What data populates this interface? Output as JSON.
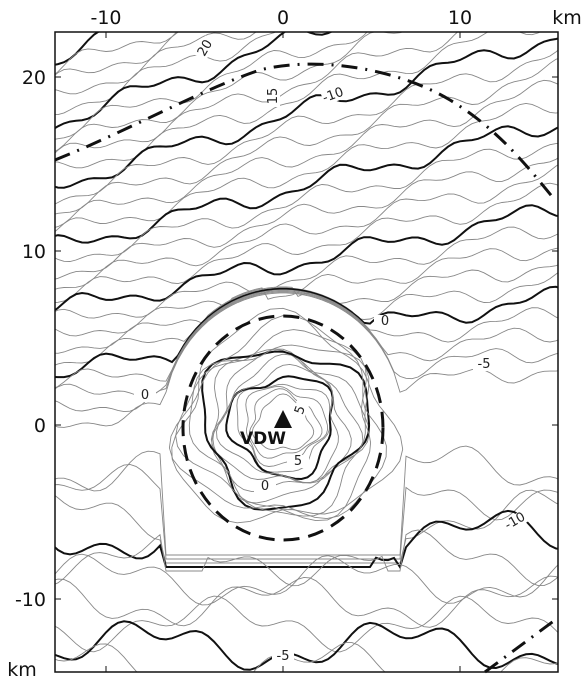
{
  "map": {
    "x_axis": {
      "unit": "km",
      "ticks": [
        -10,
        0,
        10
      ]
    },
    "y_axis": {
      "unit": "km",
      "ticks": [
        20,
        10,
        0,
        -10
      ]
    },
    "volcano_label": "VDW",
    "contour_labels": [
      20,
      15,
      -10,
      0,
      -5,
      0,
      5,
      5,
      0,
      -10,
      -5
    ]
  }
}
